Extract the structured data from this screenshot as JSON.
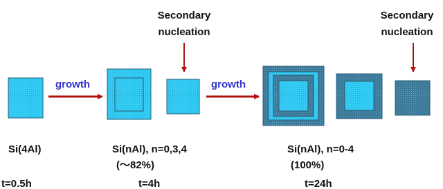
{
  "annotations": [
    {
      "line1": "Secondary",
      "line2": "nucleation"
    },
    {
      "line1": "Secondary",
      "line2": "nucleation"
    }
  ],
  "arrows": [
    "growth",
    "growth"
  ],
  "compositions": [
    {
      "name": "Si(4Al)"
    },
    {
      "name": "Si(nAl), n=0,3,4",
      "fraction": "(～82%)"
    },
    {
      "name": "Si(nAl), n=0-4",
      "fraction": "(100%)"
    }
  ],
  "times": [
    "t=0.5h",
    "t=4h",
    "t=24h"
  ]
}
